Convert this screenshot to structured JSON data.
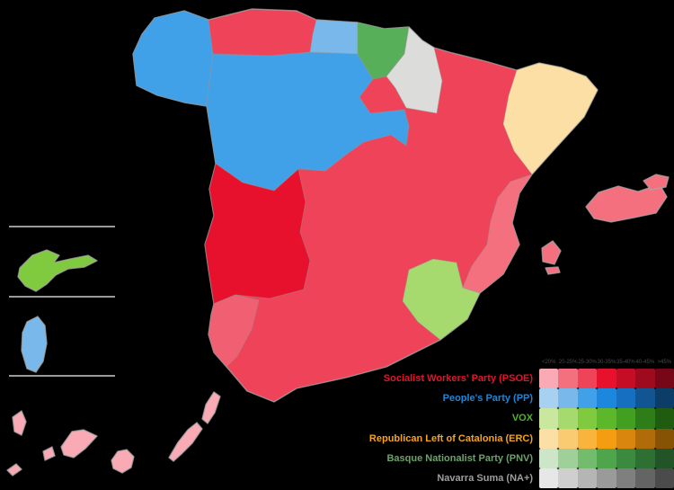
{
  "background_color": "#000000",
  "map": {
    "coast_stroke": "#A8A8A8",
    "inset_divider_color": "#9A9A9A",
    "base_region": {
      "id": "peninsula-base-psoe",
      "color": "#EE4358"
    },
    "overlays": [
      {
        "id": "galicia",
        "color": "#41A1E8"
      },
      {
        "id": "castile-leon",
        "color": "#41A1E8"
      },
      {
        "id": "cantabria",
        "color": "#79B8EB"
      },
      {
        "id": "basque-country",
        "color": "#58AF5A"
      },
      {
        "id": "navarre",
        "color": "#DCDCDA"
      },
      {
        "id": "catalonia",
        "color": "#FBDFA4"
      },
      {
        "id": "valencian-community",
        "color": "#F4707F"
      },
      {
        "id": "murcia",
        "color": "#A6DA6E"
      },
      {
        "id": "extremadura",
        "color": "#E8112D"
      },
      {
        "id": "huelva",
        "color": "#F05F72"
      },
      {
        "id": "mallorca",
        "color": "#F4707F"
      },
      {
        "id": "menorca",
        "color": "#F4707F"
      },
      {
        "id": "ibiza",
        "color": "#F4707F"
      },
      {
        "id": "formentera",
        "color": "#F4707F"
      },
      {
        "id": "ceuta",
        "color": "#7FCA3E"
      },
      {
        "id": "melilla",
        "color": "#79B8EB"
      },
      {
        "id": "lanzarote",
        "color": "#F9AAB4"
      },
      {
        "id": "fuerteventura",
        "color": "#F9AAB4"
      },
      {
        "id": "gran-canaria",
        "color": "#F9AAB4"
      },
      {
        "id": "tenerife",
        "color": "#F9AAB4"
      },
      {
        "id": "la-gomera",
        "color": "#F9AAB4"
      },
      {
        "id": "la-palma",
        "color": "#F9AAB4"
      },
      {
        "id": "el-hierro",
        "color": "#F9AAB4"
      }
    ]
  },
  "legend": {
    "bracket_labels": [
      "<20%",
      "20-25%",
      "25-30%",
      "30-35%",
      "35-40%",
      "40-45%",
      ">45%"
    ],
    "parties": [
      {
        "name": "Socialist Workers' Party (PSOE)",
        "label_color": "#E8112D",
        "shades": [
          "#F9AAB4",
          "#F4707F",
          "#EE4358",
          "#E8112D",
          "#C50E26",
          "#9E0A1E",
          "#770716"
        ]
      },
      {
        "name": "People's Party (PP)",
        "label_color": "#1B87DC",
        "shades": [
          "#A8D0F0",
          "#79B8EB",
          "#41A1E8",
          "#1C87DC",
          "#166FC0",
          "#115592",
          "#0C3C68"
        ]
      },
      {
        "name": "VOX",
        "label_color": "#54B12B",
        "shades": [
          "#C9E79F",
          "#A6DA6E",
          "#7FCA3E",
          "#5CB72B",
          "#439F22",
          "#2F7D19",
          "#205C10"
        ]
      },
      {
        "name": "Republican Left of Catalonia (ERC)",
        "label_color": "#F6A318",
        "shades": [
          "#FBDFA4",
          "#FACB70",
          "#F8B43C",
          "#F49C12",
          "#D8860D",
          "#AF6C08",
          "#865304"
        ]
      },
      {
        "name": "Basque Nationalist Party (PNV)",
        "label_color": "#6BA26B",
        "shades": [
          "#CDE6C8",
          "#9FD099",
          "#73BB6D",
          "#4FA54B",
          "#3C8A3F",
          "#2E6F34",
          "#225428"
        ]
      },
      {
        "name": "Navarra Suma (NA+)",
        "label_color": "#9E9E9E",
        "shades": [
          "#E7E7E7",
          "#CFCFCF",
          "#B5B5B5",
          "#9A9A9A",
          "#7F7F7F",
          "#646464",
          "#4B4B4B"
        ]
      }
    ]
  }
}
